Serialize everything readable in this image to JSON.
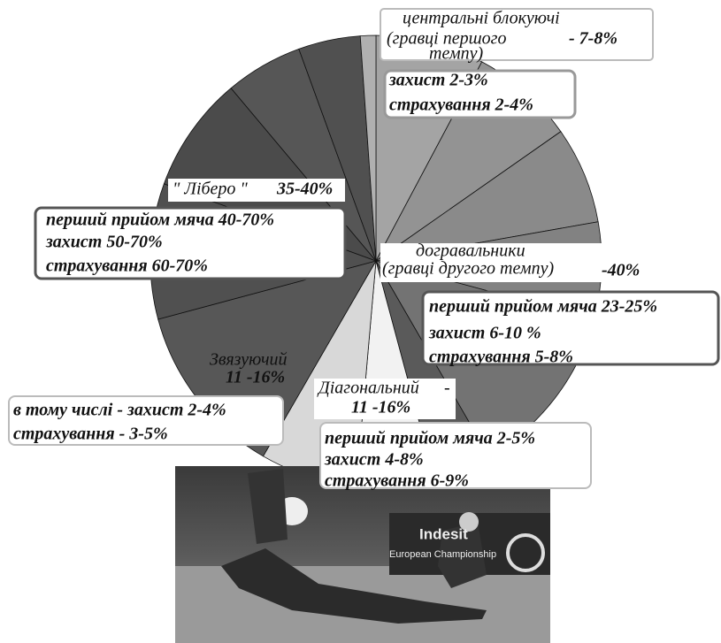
{
  "central_blockers": {
    "title": "центральні блокуючі",
    "subtitle": "(гравці першого",
    "subtitle_end": "темпу)",
    "share": "- 7-8%",
    "details": [
      "захист 2-3%",
      "страхування 2-4%"
    ]
  },
  "libero": {
    "title": "\" Ліберо \"",
    "share": "35-40%",
    "details": [
      "перший прийом мяча 40-70%",
      "захист  50-70%",
      "страхування  60-70%"
    ]
  },
  "outside_hitters": {
    "title": "догравальники",
    "subtitle": "(гравці другого темпу)",
    "share": "-40%",
    "details": [
      "перший прийом мяча 23-25%",
      "захист  6-10 %",
      "страхування 5-8%"
    ]
  },
  "setter": {
    "title": "Звязуючий",
    "share": "11 -16%",
    "details": [
      "в тому числі - захист 2-4%",
      "страхування - 3-5%"
    ]
  },
  "opposite": {
    "title": "Діагональний",
    "dash": "-",
    "share": "11 -16%",
    "details": [
      "перший прийом мяча 2-5%",
      "захист 4-8%",
      "страхування 6-9%"
    ]
  },
  "photo": {
    "brand": "Indesit",
    "caption": "European Championship"
  }
}
